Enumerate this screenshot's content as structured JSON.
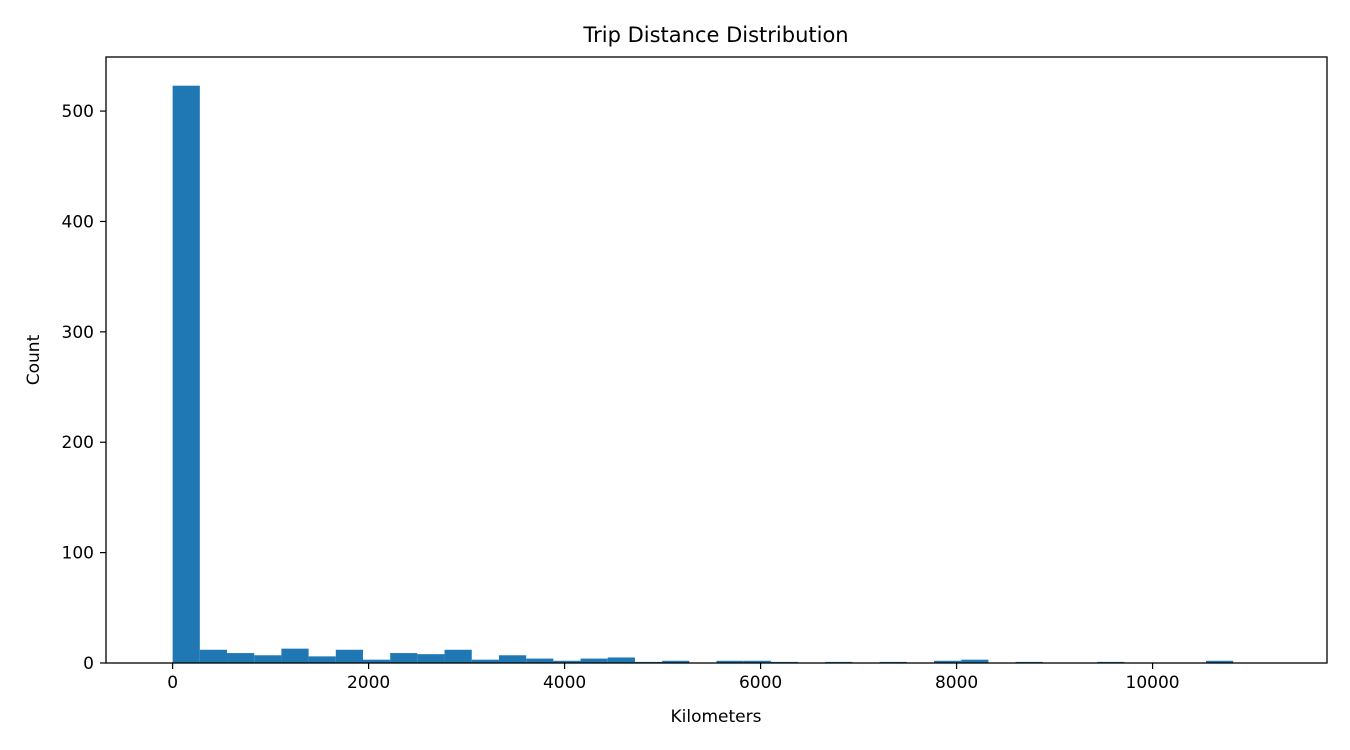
{
  "chart_data": {
    "type": "bar",
    "title": "Trip Distance Distribution",
    "xlabel": "Kilometers",
    "ylabel": "Count",
    "bin_start": 0,
    "bin_width": 277.5,
    "counts": [
      523,
      12,
      9,
      7,
      13,
      6,
      12,
      3,
      9,
      8,
      12,
      3,
      7,
      4,
      2,
      4,
      5,
      1,
      2,
      0,
      2,
      2,
      1,
      0,
      1,
      0,
      1,
      0,
      2,
      3,
      0,
      1,
      0,
      0,
      1,
      0,
      0,
      0,
      2,
      0
    ],
    "xlim": [
      -680,
      11780
    ],
    "ylim": [
      0,
      549
    ],
    "xticks": [
      0,
      2000,
      4000,
      6000,
      8000,
      10000
    ],
    "yticks": [
      0,
      100,
      200,
      300,
      400,
      500
    ],
    "bar_color": "#1f77b4",
    "grid": false,
    "legend": "none"
  }
}
